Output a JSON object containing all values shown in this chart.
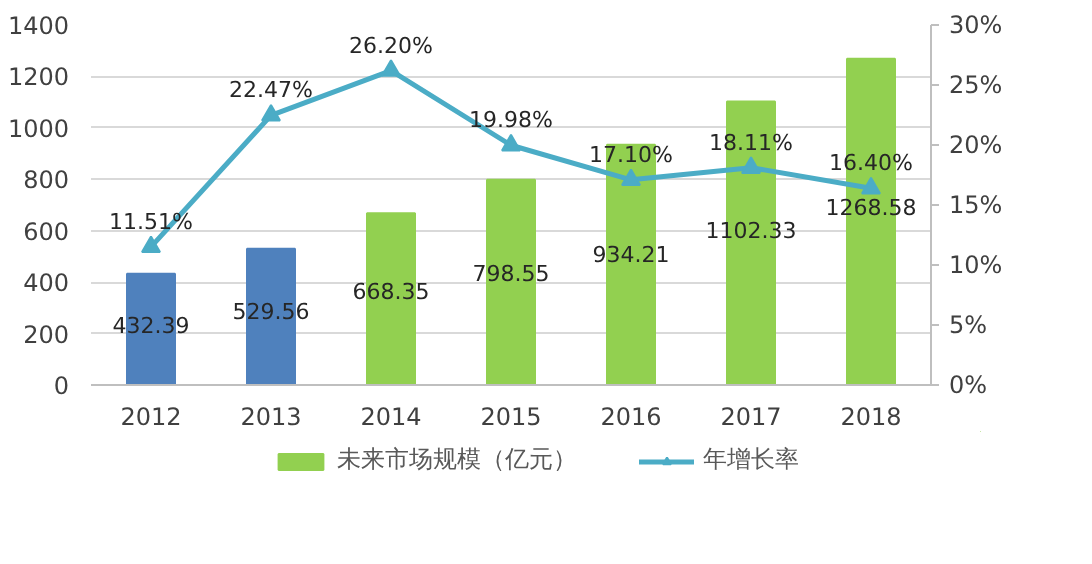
{
  "chart_data": {
    "type": "bar",
    "categories": [
      "2012",
      "2013",
      "2014",
      "2015",
      "2016",
      "2017",
      "2018"
    ],
    "series": [
      {
        "name": "未来市场规模（亿元）",
        "type": "bar",
        "color": "#92d050",
        "colors": [
          "#4f81bd",
          "#4f81bd",
          "#92d050",
          "#92d050",
          "#92d050",
          "#92d050",
          "#92d050"
        ],
        "values": [
          432.39,
          529.56,
          668.35,
          798.55,
          934.21,
          1102.33,
          1268.58
        ],
        "value_labels": [
          "432.39",
          "529.56",
          "668.35",
          "798.55",
          "934.21",
          "1102.33",
          "1268.58"
        ]
      },
      {
        "name": "年增长率",
        "type": "line",
        "axis": "y2",
        "color": "#4bacc6",
        "marker": "triangle",
        "values": [
          11.51,
          22.47,
          26.2,
          19.98,
          17.1,
          18.11,
          16.4
        ],
        "value_labels": [
          "11.51%",
          "22.47%",
          "26.20%",
          "19.98%",
          "17.10%",
          "18.11%",
          "16.40%"
        ]
      }
    ],
    "ylim": [
      0,
      1400
    ],
    "yticks": [
      0,
      200,
      400,
      600,
      800,
      1000,
      1200,
      1400
    ],
    "y2lim": [
      0,
      30
    ],
    "y2ticks": [
      {
        "value": 0,
        "label": "0%"
      },
      {
        "value": 5,
        "label": "5%"
      },
      {
        "value": 10,
        "label": "10%"
      },
      {
        "value": 15,
        "label": "15%"
      },
      {
        "value": 20,
        "label": "20%"
      },
      {
        "value": 25,
        "label": "25%"
      },
      {
        "value": 30,
        "label": "30%"
      }
    ],
    "grid": "y",
    "legend": "bottom"
  }
}
